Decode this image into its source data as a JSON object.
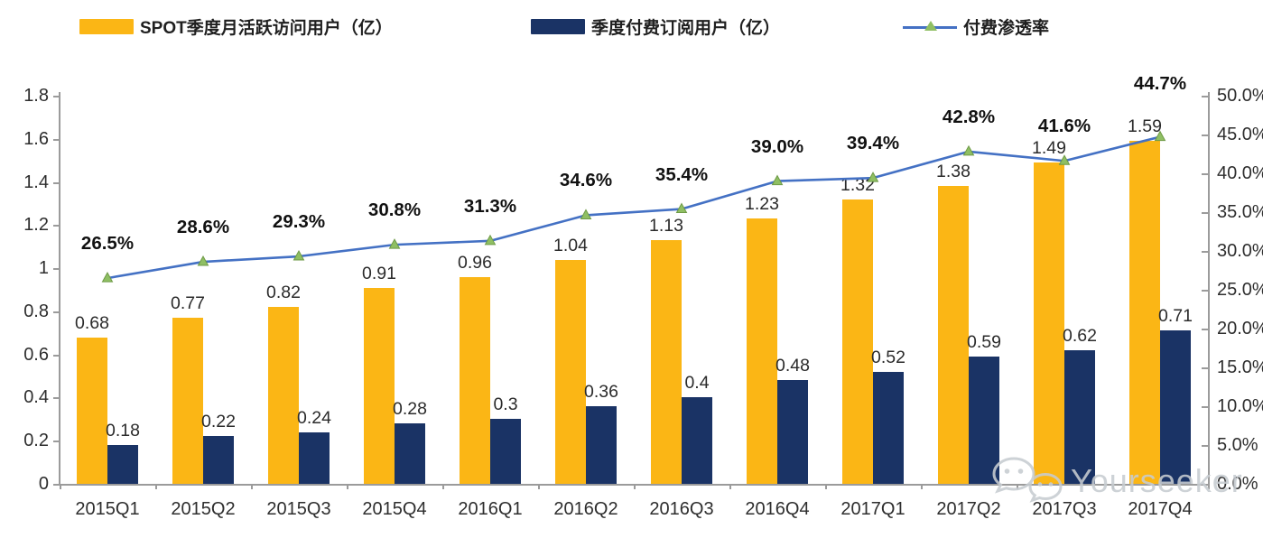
{
  "chart_data": {
    "type": "combo",
    "title": "",
    "grid": false,
    "legend_position": "top",
    "categories": [
      "2015Q1",
      "2015Q2",
      "2015Q3",
      "2015Q4",
      "2016Q1",
      "2016Q2",
      "2016Q3",
      "2016Q4",
      "2017Q1",
      "2017Q2",
      "2017Q3",
      "2017Q4"
    ],
    "series": [
      {
        "name": "SPOT季度月活跃访问用户（亿）",
        "type": "bar",
        "axis": "left",
        "color": "#FBB615",
        "values": [
          0.68,
          0.77,
          0.82,
          0.91,
          0.96,
          1.04,
          1.13,
          1.23,
          1.32,
          1.38,
          1.49,
          1.59
        ]
      },
      {
        "name": "季度付费订阅用户（亿）",
        "type": "bar",
        "axis": "left",
        "color": "#1A3365",
        "values": [
          0.18,
          0.22,
          0.24,
          0.28,
          0.3,
          0.36,
          0.4,
          0.48,
          0.52,
          0.59,
          0.62,
          0.71
        ]
      },
      {
        "name": "付费渗透率",
        "type": "line",
        "axis": "right",
        "color": "#4471C4",
        "marker": "triangle",
        "marker_color": "#8FBF63",
        "marker_edge_color": "#6E9A46",
        "values": [
          26.5,
          28.6,
          29.3,
          30.8,
          31.3,
          34.6,
          35.4,
          39.0,
          39.4,
          42.8,
          41.6,
          44.7
        ],
        "labels": [
          "26.5%",
          "28.6%",
          "29.3%",
          "30.8%",
          "31.3%",
          "34.6%",
          "35.4%",
          "39.0%",
          "39.4%",
          "42.8%",
          "41.6%",
          "44.7%"
        ]
      }
    ],
    "left_axis": {
      "min": 0,
      "max": 1.8,
      "ticks": [
        "1.8",
        "1.6",
        "1.4",
        "1.2",
        "1",
        "0.8",
        "0.6",
        "0.4",
        "0.2",
        "0"
      ]
    },
    "right_axis": {
      "min": 0,
      "max": 50,
      "ticks": [
        "50.0%",
        "45.0%",
        "40.0%",
        "35.0%",
        "30.0%",
        "25.0%",
        "20.0%",
        "15.0%",
        "10.0%",
        "5.0%",
        "0.0%"
      ]
    },
    "axis_color": "#9B9B9B"
  },
  "watermark": {
    "text": "Yourseeker",
    "icon": "wechat-icon"
  }
}
